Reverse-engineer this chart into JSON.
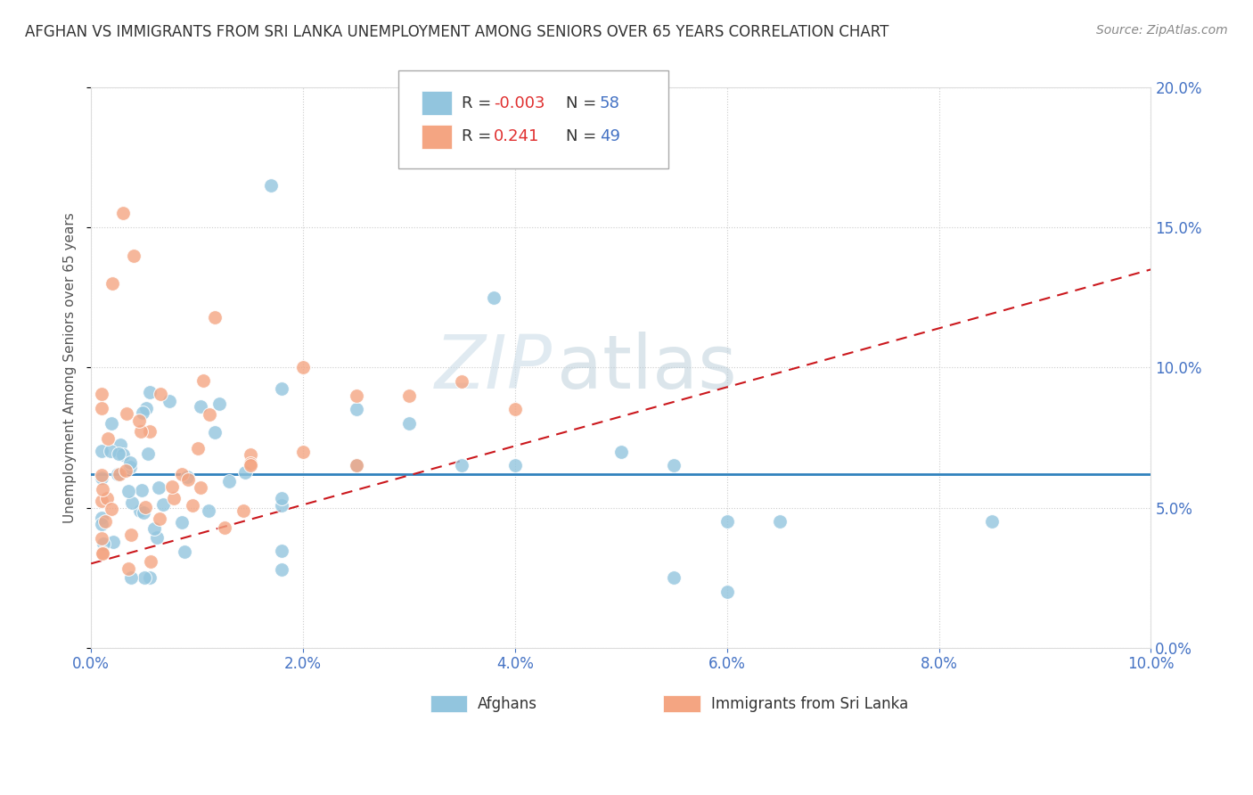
{
  "title": "AFGHAN VS IMMIGRANTS FROM SRI LANKA UNEMPLOYMENT AMONG SENIORS OVER 65 YEARS CORRELATION CHART",
  "source": "Source: ZipAtlas.com",
  "ylabel": "Unemployment Among Seniors over 65 years",
  "watermark_zip": "ZIP",
  "watermark_atlas": "atlas",
  "xlim": [
    0.0,
    0.1
  ],
  "ylim": [
    0.0,
    0.2
  ],
  "xticks": [
    0.0,
    0.02,
    0.04,
    0.06,
    0.08,
    0.1
  ],
  "xtick_labels": [
    "0.0%",
    "2.0%",
    "4.0%",
    "6.0%",
    "8.0%",
    "10.0%"
  ],
  "yticks": [
    0.0,
    0.05,
    0.1,
    0.15,
    0.2
  ],
  "ytick_labels": [
    "0.0%",
    "5.0%",
    "10.0%",
    "15.0%",
    "20.0%"
  ],
  "blue_R": -0.003,
  "blue_N": 58,
  "pink_R": 0.241,
  "pink_N": 49,
  "blue_color": "#92c5de",
  "pink_color": "#f4a582",
  "blue_line_color": "#3182bd",
  "pink_line_color": "#cb181d",
  "title_color": "#333333",
  "axis_color": "#4472C4",
  "grid_color": "#cccccc",
  "background_color": "#ffffff",
  "blue_line_y": 0.062,
  "pink_line_slope": 1.05,
  "pink_line_intercept": 0.03
}
